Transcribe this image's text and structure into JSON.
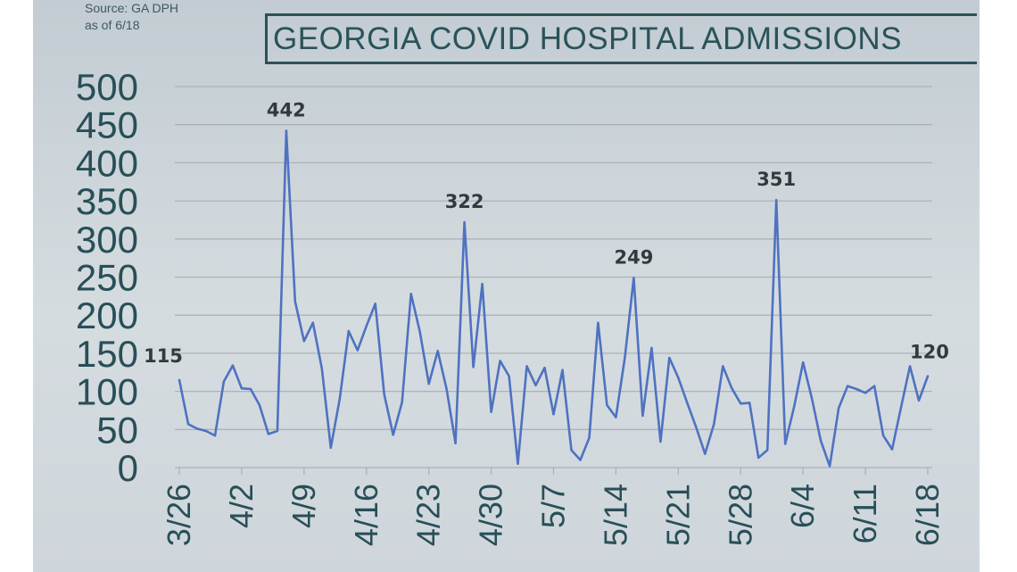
{
  "header": {
    "source_line1": "Source: GA DPH",
    "source_line2": "as of 6/18",
    "title": "GEORGIA COVID HOSPITAL ADMISSIONS"
  },
  "colors": {
    "line": "#4f72c0",
    "grid": "#a9b3b8",
    "axis_text": "#284f58",
    "title": "#2a535a",
    "annotation": "#333a3d"
  },
  "chart_data": {
    "type": "line",
    "title": "GEORGIA COVID HOSPITAL ADMISSIONS",
    "xlabel": "",
    "ylabel": "",
    "ylim": [
      0,
      500
    ],
    "yticks": [
      0,
      50,
      100,
      150,
      200,
      250,
      300,
      350,
      400,
      450,
      500
    ],
    "grid": true,
    "x_tick_labels": [
      "3/26",
      "4/2",
      "4/9",
      "4/16",
      "4/23",
      "4/30",
      "5/7",
      "5/14",
      "5/21",
      "5/28",
      "6/4",
      "6/11",
      "6/18"
    ],
    "start_date": "3/26",
    "end_date": "6/18",
    "series": [
      {
        "values": [
          115,
          57,
          51,
          48,
          42,
          113,
          134,
          104,
          103,
          82,
          44,
          48,
          442,
          218,
          166,
          190,
          130,
          26,
          90,
          179,
          154,
          186,
          215,
          96,
          43,
          86,
          228,
          178,
          110,
          153,
          103,
          32,
          322,
          132,
          241,
          73,
          140,
          120,
          5,
          133,
          108,
          131,
          70,
          128,
          23,
          10,
          39,
          190,
          82,
          66,
          144,
          249,
          68,
          157,
          34,
          144,
          118,
          85,
          53,
          18,
          57,
          133,
          104,
          84,
          85,
          13,
          23,
          351,
          31,
          80,
          138,
          90,
          35,
          2,
          78,
          107,
          103,
          98,
          107,
          42,
          24,
          79,
          133,
          88,
          120
        ]
      }
    ],
    "annotations": [
      {
        "label": "115",
        "index": 0
      },
      {
        "label": "442",
        "index": 12
      },
      {
        "label": "322",
        "index": 32
      },
      {
        "label": "249",
        "index": 51
      },
      {
        "label": "351",
        "index": 67
      },
      {
        "label": "120",
        "index": 84
      }
    ]
  }
}
